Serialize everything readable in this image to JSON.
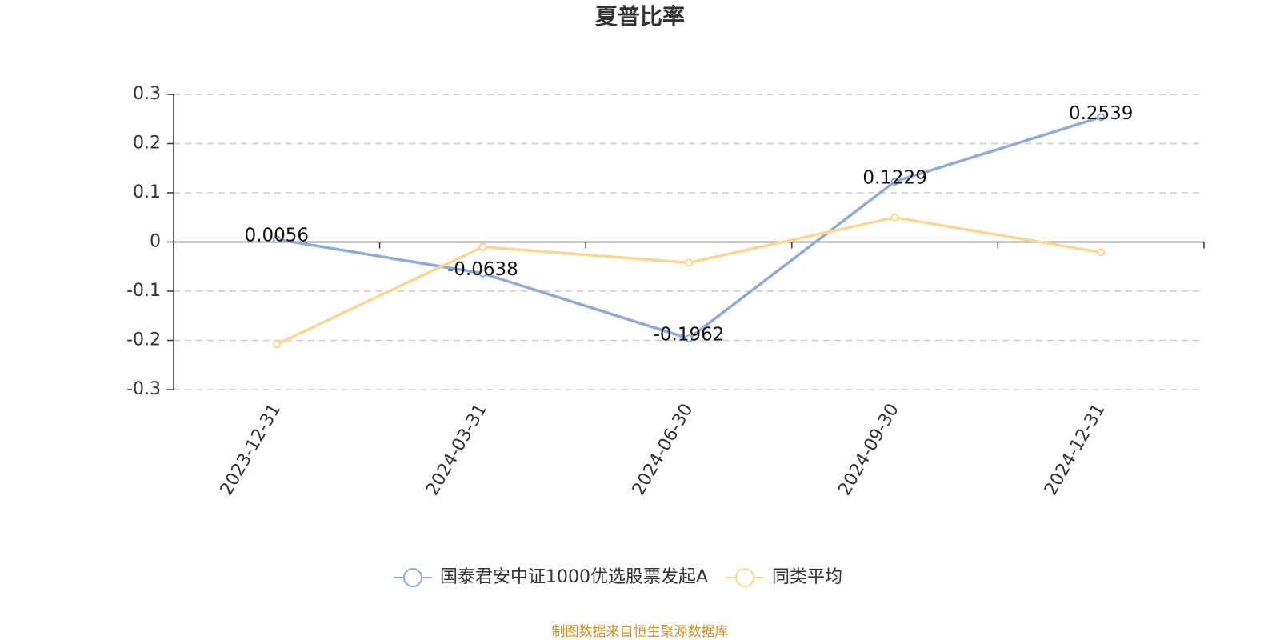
{
  "chart_data": {
    "type": "line",
    "title": "夏普比率",
    "categories": [
      "2023-12-31",
      "2024-03-31",
      "2024-06-30",
      "2024-09-30",
      "2024-12-31"
    ],
    "series": [
      {
        "name": "国泰君安中证1000优选股票发起A",
        "color": "#8eaad6",
        "values": [
          0.0056,
          -0.0638,
          -0.1962,
          0.1229,
          0.2539
        ],
        "show_labels": true
      },
      {
        "name": "同类平均",
        "color": "#fcd793",
        "values": [
          -0.208,
          -0.01,
          -0.042,
          0.05,
          -0.021
        ],
        "show_labels": false
      }
    ],
    "ylim": [
      -0.3,
      0.3
    ],
    "yticks": [
      -0.3,
      -0.2,
      -0.1,
      0,
      0.1,
      0.2,
      0.3
    ],
    "grid": true,
    "legend": "bottom",
    "source": "制图数据来自恒生聚源数据库"
  }
}
